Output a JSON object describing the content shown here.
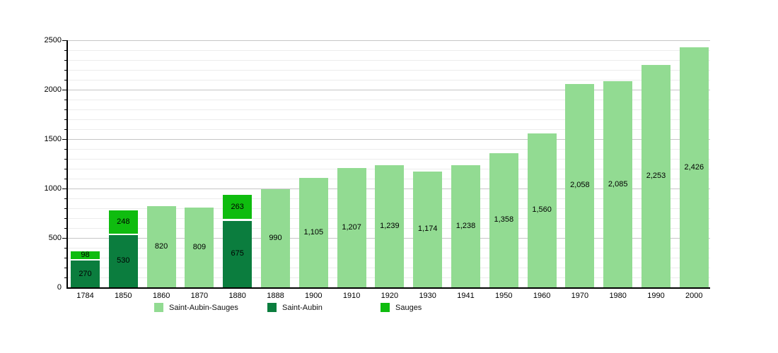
{
  "chart_data": {
    "type": "bar",
    "stacked": true,
    "categories": [
      "1784",
      "1850",
      "1860",
      "1870",
      "1880",
      "1888",
      "1900",
      "1910",
      "1920",
      "1930",
      "1941",
      "1950",
      "1960",
      "1970",
      "1980",
      "1990",
      "2000"
    ],
    "series": [
      {
        "name": "Saint-Aubin-Sauges",
        "color": "#92db92",
        "values": [
          null,
          null,
          820,
          809,
          null,
          990,
          1105,
          1207,
          1239,
          1174,
          1238,
          1358,
          1560,
          2058,
          2085,
          2253,
          2426
        ]
      },
      {
        "name": "Saint-Aubin",
        "color": "#0b7d3e",
        "values": [
          270,
          530,
          null,
          null,
          675,
          null,
          null,
          null,
          null,
          null,
          null,
          null,
          null,
          null,
          null,
          null,
          null
        ]
      },
      {
        "name": "Sauges",
        "color": "#0fbc0f",
        "values": [
          98,
          248,
          null,
          null,
          263,
          null,
          null,
          null,
          null,
          null,
          null,
          null,
          null,
          null,
          null,
          null,
          null
        ]
      }
    ],
    "ylim": [
      0,
      2500
    ],
    "yticks": [
      0,
      500,
      1000,
      1500,
      2000,
      2500
    ],
    "minor_tick_step": 100,
    "grid": true,
    "legend_position": "bottom",
    "bar_value_labels_shown": true,
    "value_label_format": "thousands-comma"
  }
}
